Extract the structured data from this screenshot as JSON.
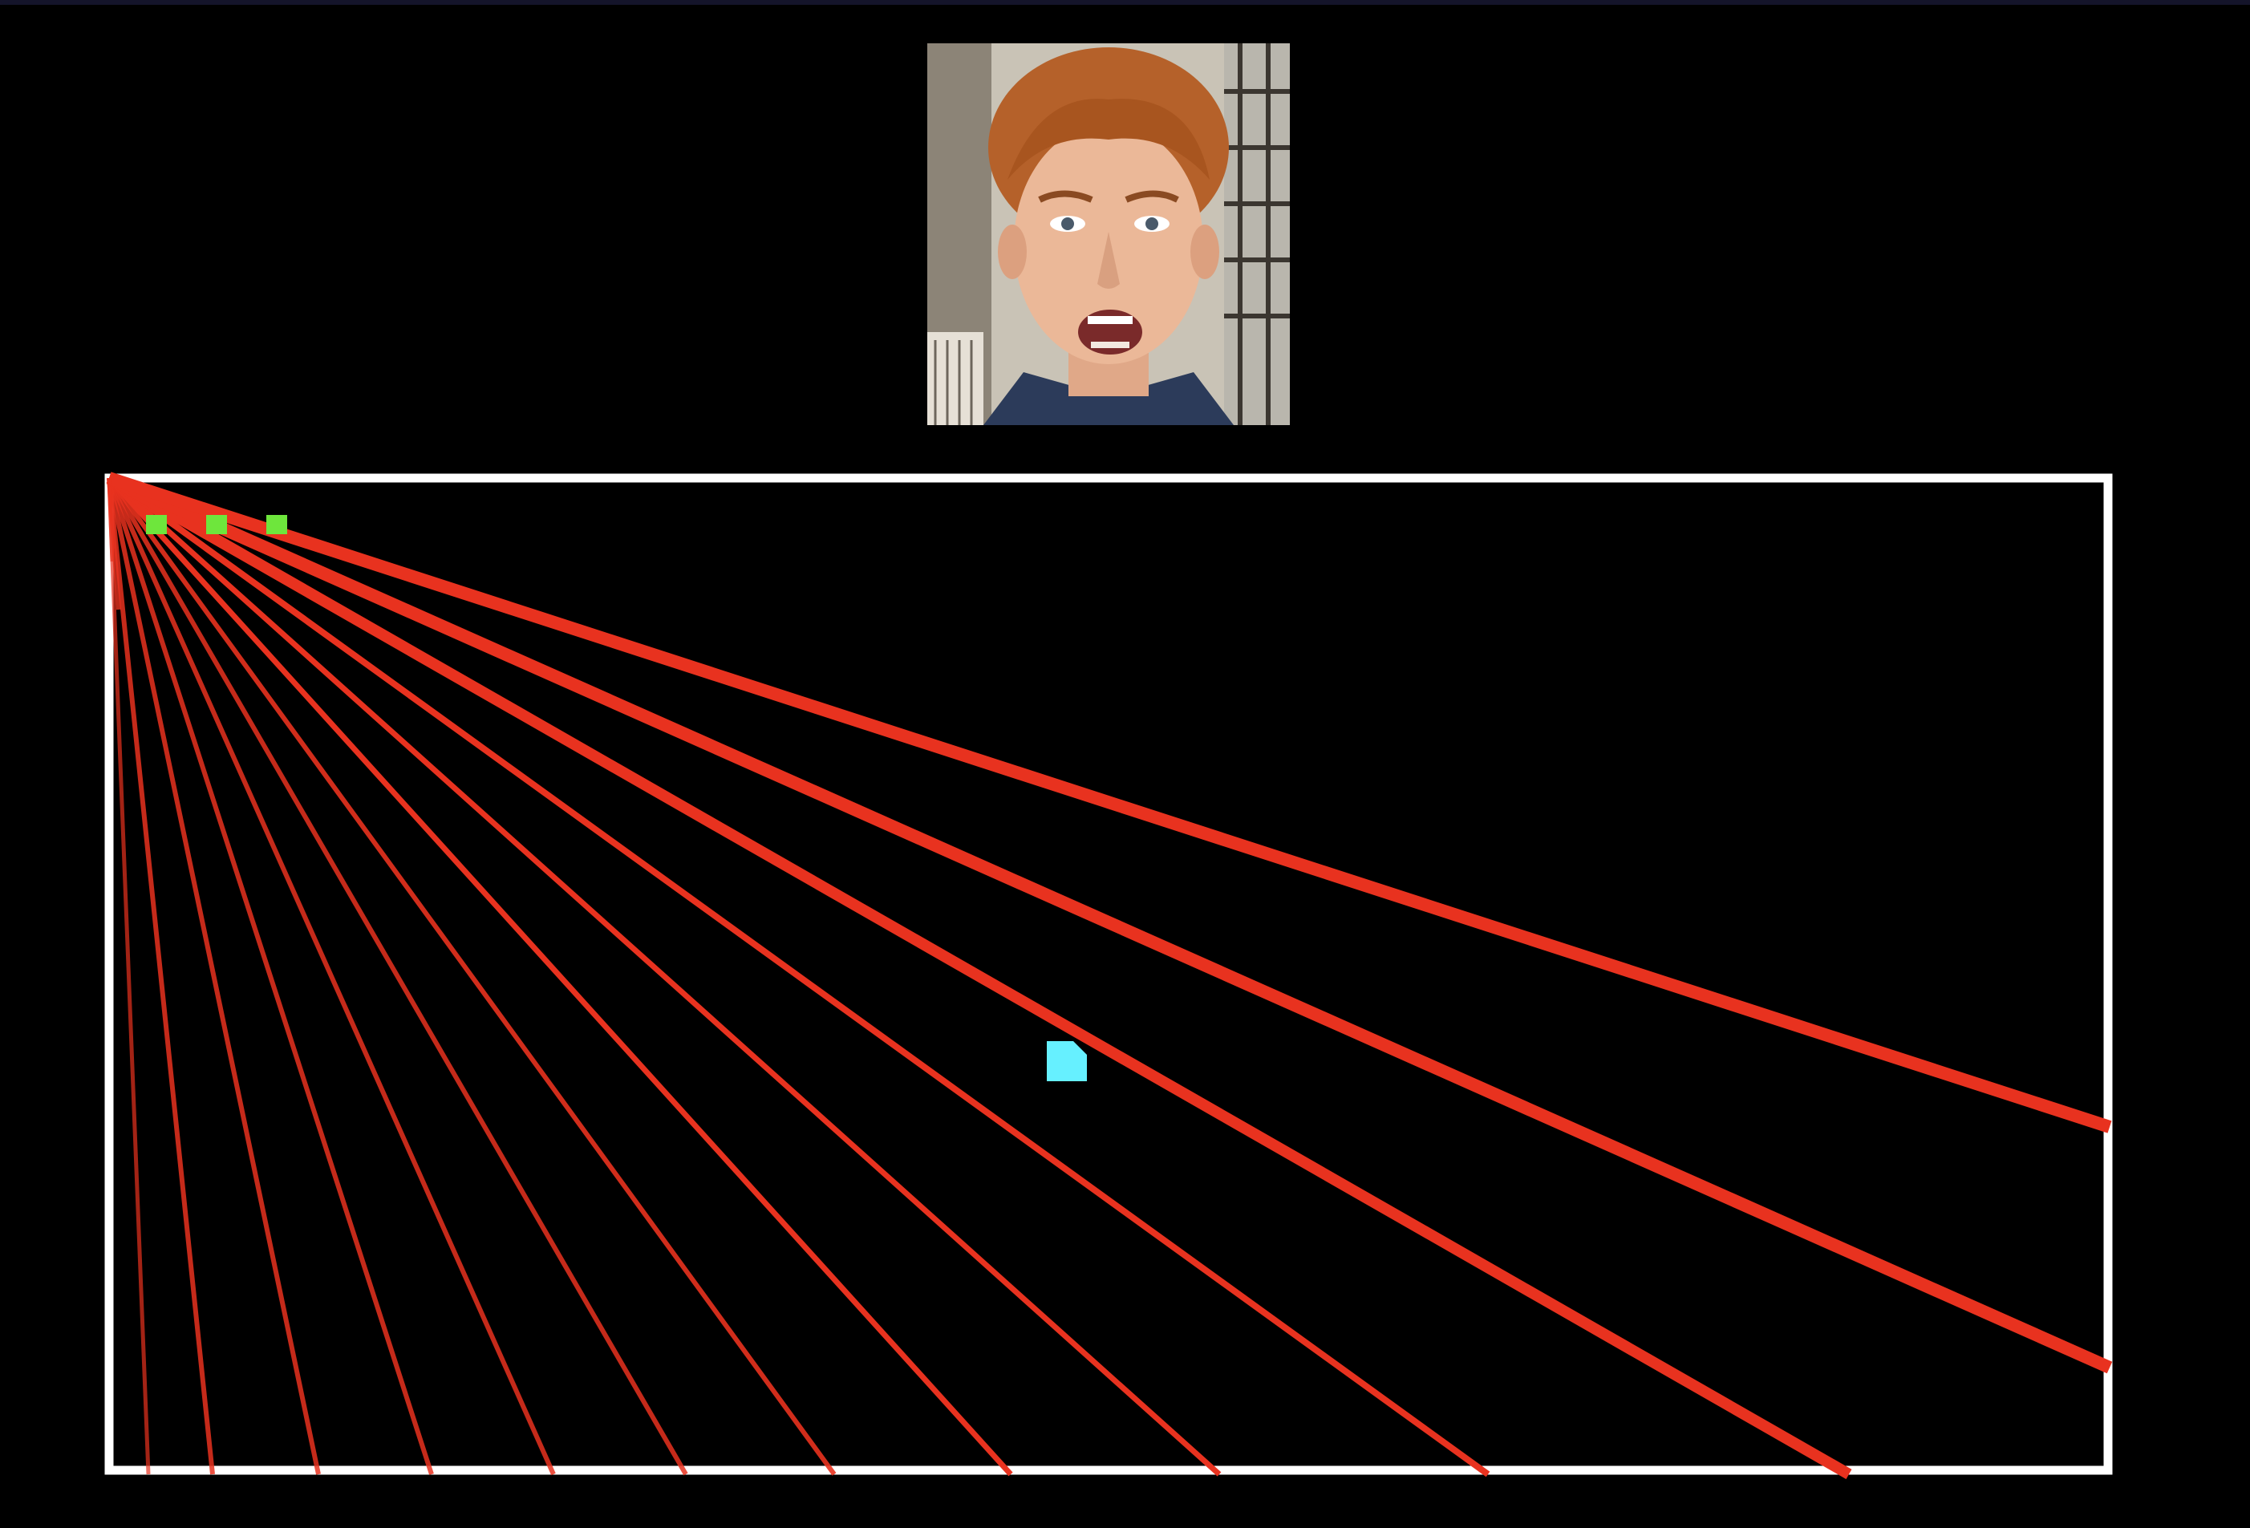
{
  "portrait": {
    "icon": "singer-portrait-icon"
  },
  "colors": {
    "background": "#000000",
    "top_bar": "#14142a",
    "arena_border": "#ffffff",
    "ray": "#e8321f",
    "player": "#66f0ff",
    "pickup": "#6ee63c"
  },
  "game": {
    "pickups_visible": 3,
    "rays_visible": 15
  }
}
